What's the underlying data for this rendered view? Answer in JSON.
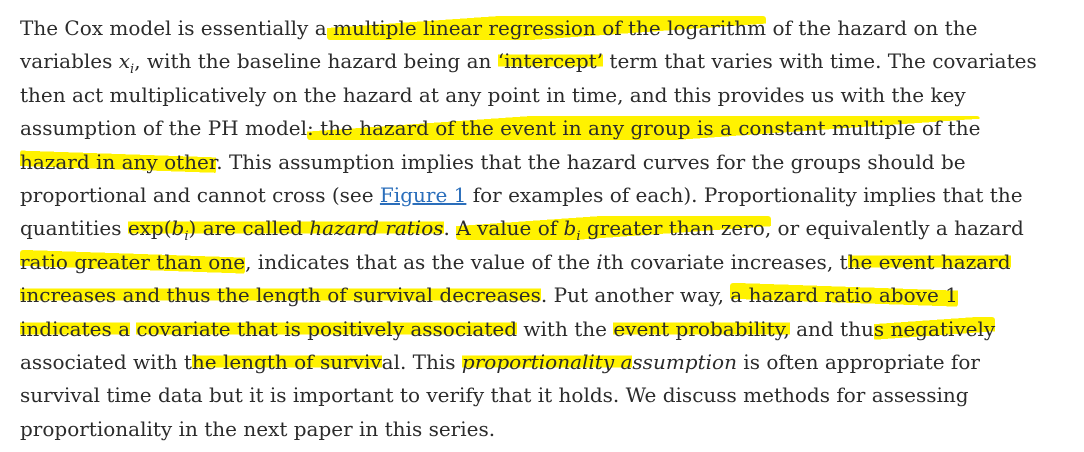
{
  "paragraph": {
    "l1": {
      "a": "The Cox model is essentially a",
      "h1": " multiple linear regression of the logarithm",
      "b": " of the hazard on the"
    },
    "l2": {
      "a": "variables ",
      "var_x": "x",
      "sub_i": "i",
      "b": ", with the baseline hazard being an ",
      "h1": "‘intercept’",
      "c": " term that varies with time. The covariates"
    },
    "l3": {
      "a": "then act multiplicatively on the hazard at any point in time, and this provides us with the key"
    },
    "l4": {
      "a": "assumption of the PH model",
      "h1": ": the hazard of the event in any group is a constant multiple of the"
    },
    "l5": {
      "h1": "hazard in any other",
      "a": ". This assumption implies that the hazard curves for the groups should be"
    },
    "l6": {
      "a": "proportional and cannot cross (see ",
      "link": "Figure 1",
      "b": " for examples of each). Proportionality implies that the"
    },
    "l7": {
      "a": "quantities ",
      "h1a": "exp(",
      "var_b": "b",
      "sub_i": "i",
      "h1b": ") are called ",
      "h1c": "hazard ratios",
      "b": ". ",
      "h2a": "A value of ",
      "var_b2": "b",
      "sub_i2": "i",
      "h2b": " greater than zero,",
      "c": " or equivalently a hazard"
    },
    "l8": {
      "h1": "ratio greater than one",
      "a": ", indicates that as the value of the ",
      "i_var": "i",
      "b": "th covariate increases",
      "c": ", t",
      "h2": "he event hazard"
    },
    "l9": {
      "h1": "increases and thus the length of survival decreases",
      "a": ". Put another way, ",
      "h2": "a hazard ratio above 1"
    },
    "l10": {
      "h1": "indicates a",
      "a": " ",
      "h2": "covariate that is positively associated",
      "b": " with the ",
      "h3": "event probability,",
      "c": " and thu",
      "h4": "s negatively"
    },
    "l11": {
      "a": "associated with t",
      "h1": "he length of surviv",
      "b": "al. This ",
      "h2a": "proportionality a",
      "c": "ssumption",
      "d": " is often appropriate for"
    },
    "l12": {
      "a": "survival time data but it is important to verify that it holds. We discuss methods for assessing"
    },
    "l13": {
      "a": "proportionality in the next paper in this series."
    }
  },
  "colors": {
    "highlight": "#fff200",
    "text": "#2b2b2b",
    "link": "#2a6ebb"
  }
}
